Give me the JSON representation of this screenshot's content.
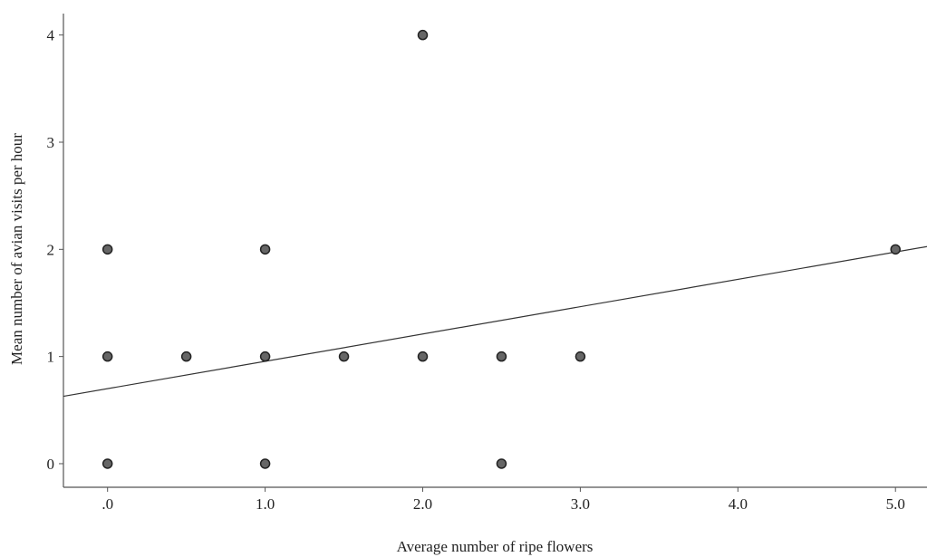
{
  "chart_data": {
    "type": "scatter",
    "title": "",
    "xlabel": "Average number of ripe flowers",
    "ylabel": "Mean number of avian visits per hour",
    "xlim": [
      -0.28,
      5.2
    ],
    "ylim": [
      -0.22,
      4.2
    ],
    "x_ticks": [
      {
        "value": 0,
        "label": ".0"
      },
      {
        "value": 1,
        "label": "1.0"
      },
      {
        "value": 2,
        "label": "2.0"
      },
      {
        "value": 3,
        "label": "3.0"
      },
      {
        "value": 4,
        "label": "4.0"
      },
      {
        "value": 5,
        "label": "5.0"
      }
    ],
    "y_ticks": [
      {
        "value": 0,
        "label": "0"
      },
      {
        "value": 1,
        "label": "1"
      },
      {
        "value": 2,
        "label": "2"
      },
      {
        "value": 3,
        "label": "3"
      },
      {
        "value": 4,
        "label": "4"
      }
    ],
    "grid": false,
    "legend": "none",
    "marker_color": "#666666",
    "line_color": "#333333",
    "points": [
      {
        "x": 0,
        "y": 0
      },
      {
        "x": 0,
        "y": 1
      },
      {
        "x": 0,
        "y": 2
      },
      {
        "x": 0.5,
        "y": 1
      },
      {
        "x": 1,
        "y": 0
      },
      {
        "x": 1,
        "y": 1
      },
      {
        "x": 1,
        "y": 2
      },
      {
        "x": 1.5,
        "y": 1
      },
      {
        "x": 2,
        "y": 1
      },
      {
        "x": 2,
        "y": 4
      },
      {
        "x": 2.5,
        "y": 0
      },
      {
        "x": 2.5,
        "y": 1
      },
      {
        "x": 3,
        "y": 1
      },
      {
        "x": 5,
        "y": 2
      }
    ],
    "fit_line": {
      "intercept": 0.7,
      "slope": 0.255
    }
  }
}
